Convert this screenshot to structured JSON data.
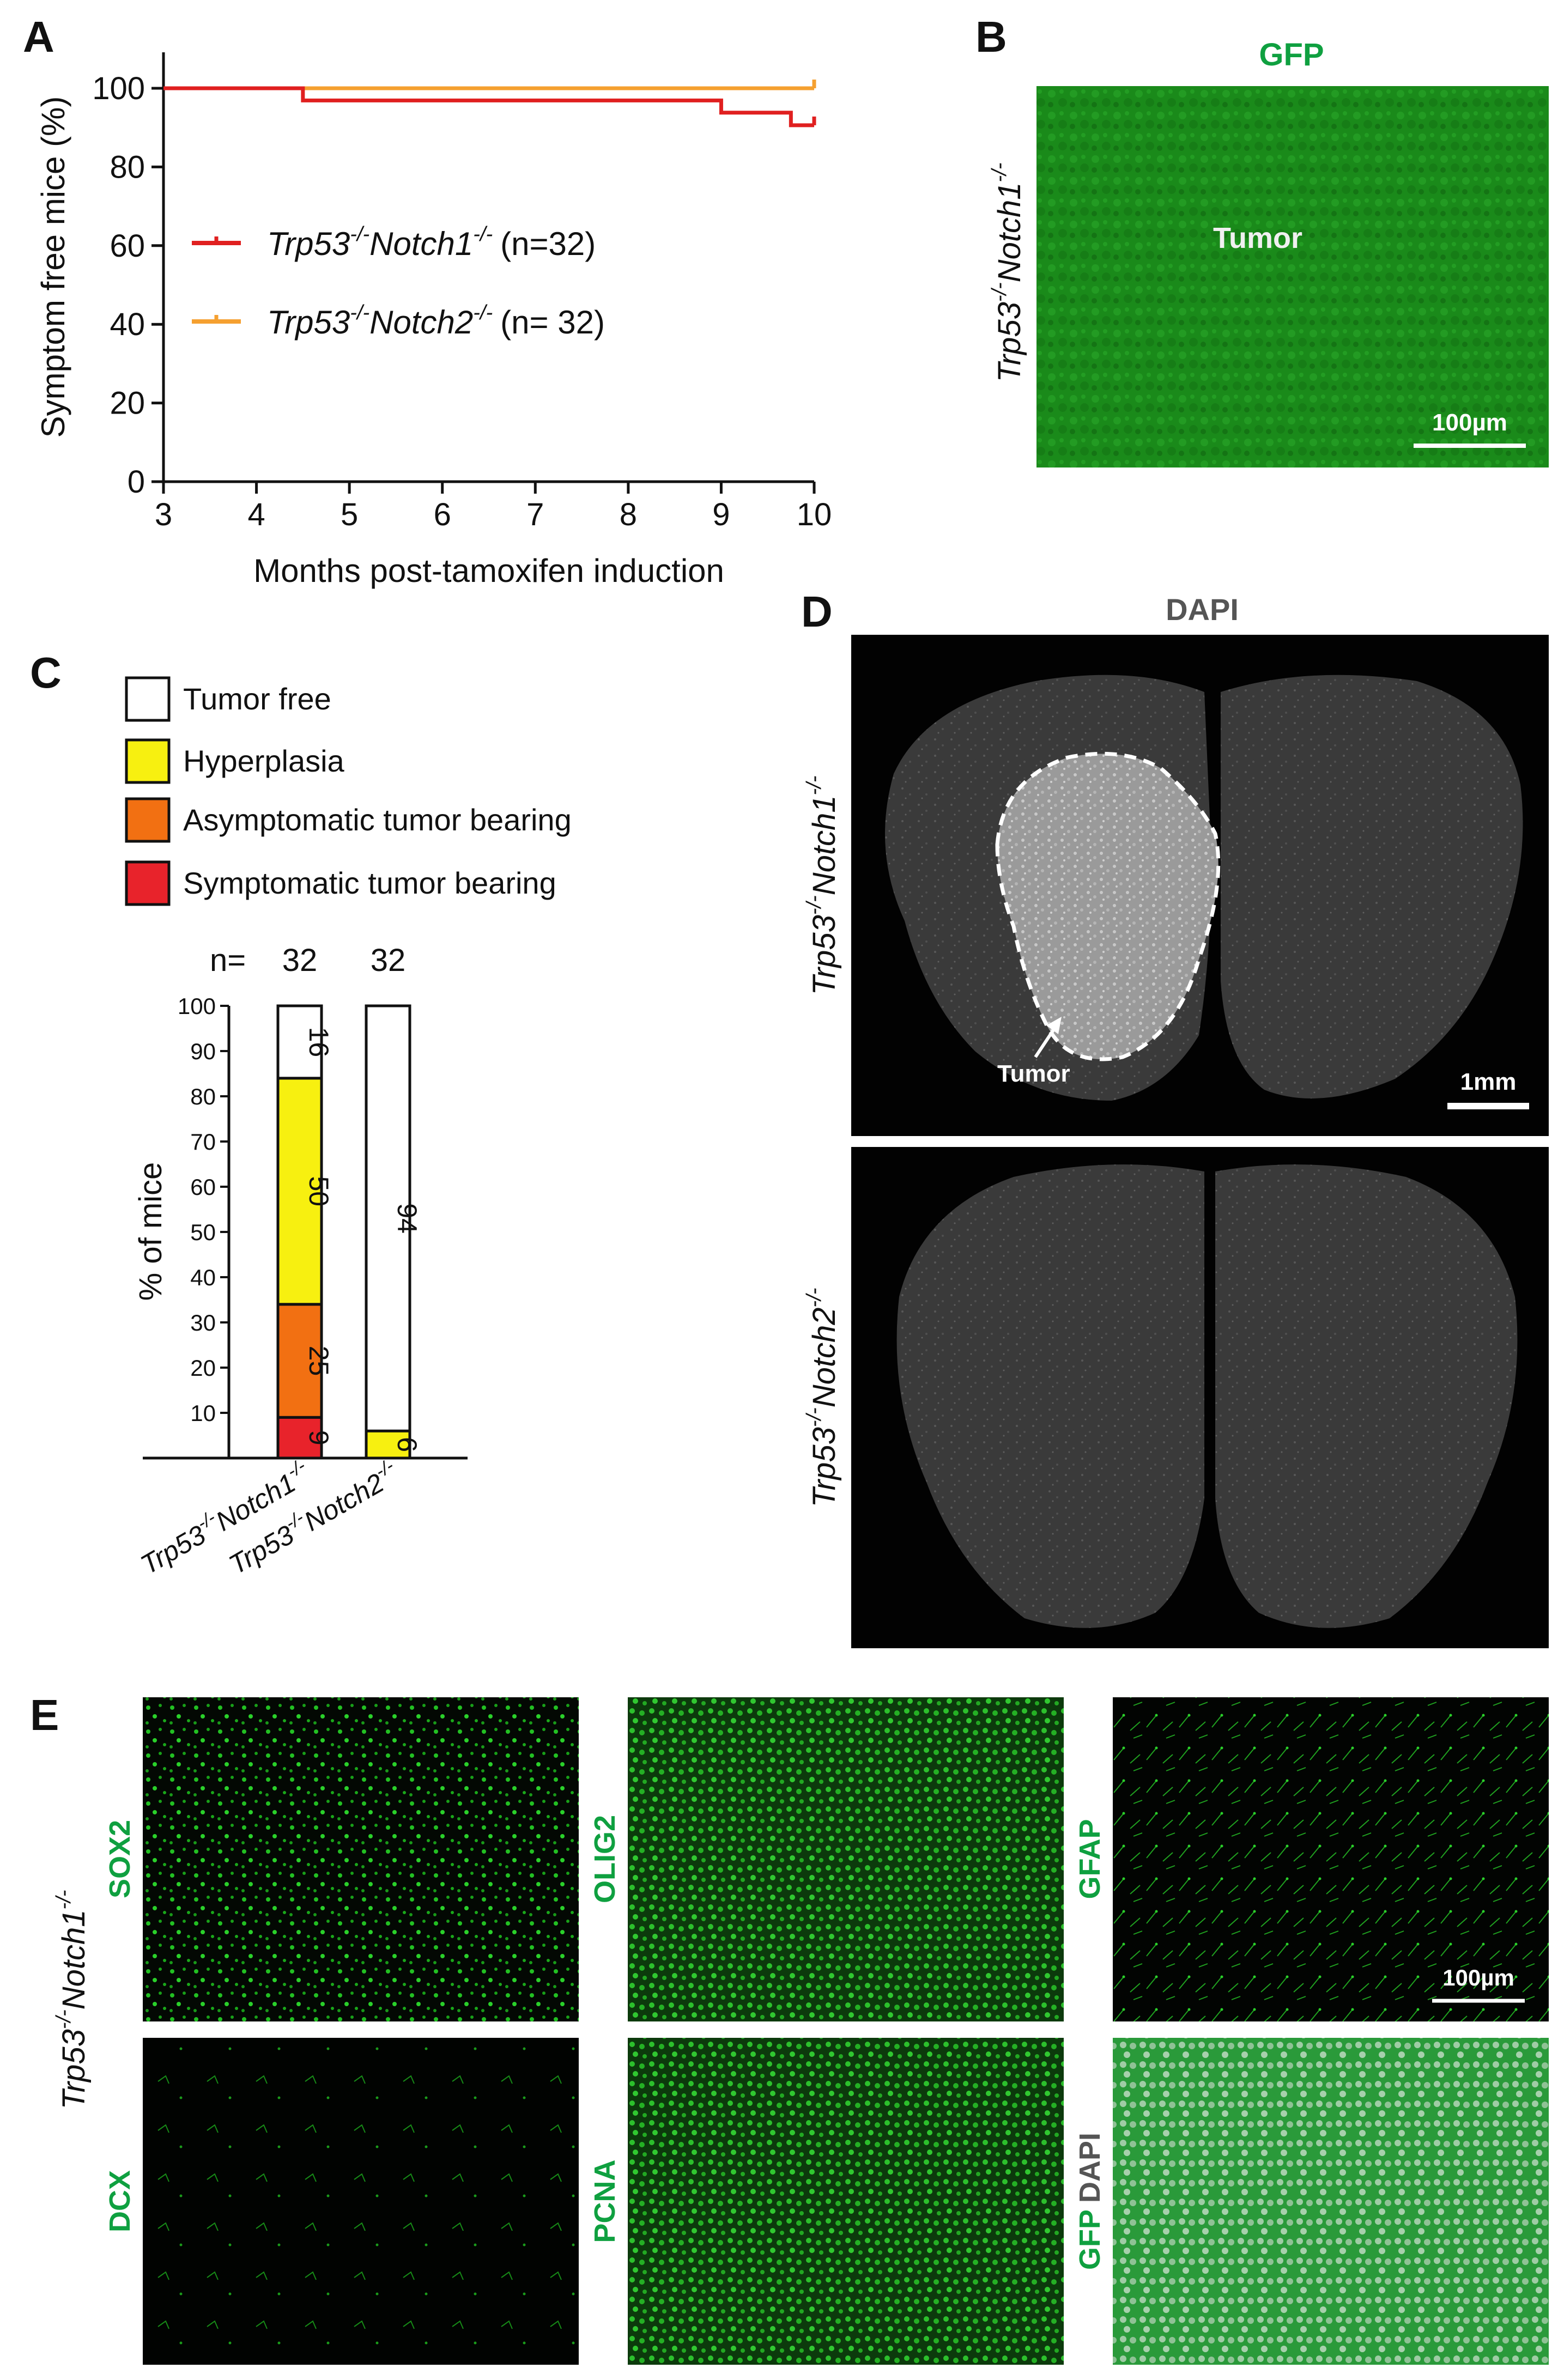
{
  "chart_data": [
    {
      "panel": "A",
      "type": "line",
      "xlabel": "Months post-tamoxifen induction",
      "ylabel": "Symptom free mice (%)",
      "xlim": [
        3,
        10
      ],
      "ylim": [
        0,
        100
      ],
      "x_ticks": [
        "3",
        "4",
        "5",
        "6",
        "7",
        "8",
        "9",
        "10"
      ],
      "y_ticks": [
        "0",
        "20",
        "40",
        "60",
        "80",
        "100"
      ],
      "legend_placement": "left",
      "series": [
        {
          "gene": "Trp53",
          "gene_sup": "-/-",
          "gene2": "Notch1",
          "gene2_sup": "-/-",
          "n": "(n=32)",
          "color": "#e02020",
          "x": [
            3,
            4.5,
            9,
            9.75,
            10
          ],
          "y": [
            100,
            96.9,
            93.8,
            90.6,
            90.6
          ]
        },
        {
          "gene": "Trp53",
          "gene_sup": "-/-",
          "gene2": "Notch2",
          "gene2_sup": "-/-",
          "n": "(n= 32)",
          "color": "#f5a030",
          "x": [
            3,
            10
          ],
          "y": [
            100,
            100
          ]
        }
      ]
    },
    {
      "panel": "C",
      "type": "bar",
      "stacked": true,
      "ylabel": "% of mice",
      "ylim": [
        0,
        100
      ],
      "y_ticks": [
        "10",
        "20",
        "30",
        "40",
        "50",
        "60",
        "70",
        "80",
        "90",
        "100"
      ],
      "n_label": "n=",
      "categories": [
        {
          "gene": "Trp53",
          "sup": "-/-",
          "gene2": "Notch1",
          "sup2": "-/-",
          "n": "32"
        },
        {
          "gene": "Trp53",
          "sup": "-/-",
          "gene2": "Notch2",
          "sup2": "-/-",
          "n": "32"
        }
      ],
      "series": [
        {
          "name": "Symptomatic tumor bearing",
          "color": "#e8232b",
          "values": [
            9,
            0
          ],
          "labels": [
            "9",
            ""
          ]
        },
        {
          "name": "Asymptomatic tumor bearing",
          "color": "#f27012",
          "values": [
            25,
            0
          ],
          "labels": [
            "25",
            ""
          ]
        },
        {
          "name": "Hyperplasia",
          "color": "#f7f010",
          "values": [
            50,
            6
          ],
          "labels": [
            "50",
            "6"
          ]
        },
        {
          "name": "Tumor free",
          "color": "#ffffff",
          "values": [
            16,
            94
          ],
          "labels": [
            "16",
            "94"
          ]
        }
      ],
      "legend_order": [
        "Tumor free",
        "Hyperplasia",
        "Asymptomatic tumor bearing",
        "Symptomatic tumor bearing"
      ]
    }
  ],
  "panel_letters": [
    "A",
    "B",
    "C",
    "D",
    "E"
  ],
  "panel_b": {
    "stain": "GFP",
    "label": "Tumor",
    "scale": "100µm",
    "row_gene": "Trp53",
    "row_sup": "-/-",
    "row_gene2": "Notch1",
    "row_sup2": "-/-"
  },
  "panel_d": {
    "stain": "DAPI",
    "tumor_label": "Tumor",
    "scale": "1mm",
    "rows": [
      {
        "gene": "Trp53",
        "sup": "-/-",
        "gene2": "Notch1",
        "sup2": "-/-"
      },
      {
        "gene": "Trp53",
        "sup": "-/-",
        "gene2": "Notch2",
        "sup2": "-/-"
      }
    ]
  },
  "panel_e": {
    "row_gene": "Trp53",
    "row_sup": "-/-",
    "row_gene2": "Notch1",
    "row_sup2": "-/-",
    "scale": "100µm",
    "markers": [
      "SOX2",
      "OLIG2",
      "GFAP",
      "DCX",
      "PCNA"
    ],
    "merge": [
      "GFP",
      "DAPI"
    ]
  },
  "colors": {
    "gfp_text": "#0fa040",
    "stain_green": "#1a8a1a",
    "dapi_text": "#555555"
  }
}
